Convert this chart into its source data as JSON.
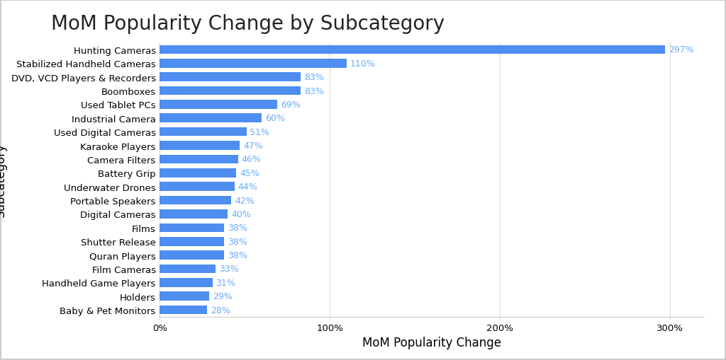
{
  "title": "MoM Popularity Change by Subcategory",
  "xlabel": "MoM Popularity Change",
  "ylabel": "Subcategory",
  "categories": [
    "Baby & Pet Monitors",
    "Holders",
    "Handheld Game Players",
    "Film Cameras",
    "Quran Players",
    "Shutter Release",
    "Films",
    "Digital Cameras",
    "Portable Speakers",
    "Underwater Drones",
    "Battery Grip",
    "Camera Filters",
    "Karaoke Players",
    "Used Digital Cameras",
    "Industrial Camera",
    "Used Tablet PCs",
    "Boomboxes",
    "DVD, VCD Players & Recorders",
    "Stabilized Handheld Cameras",
    "Hunting Cameras"
  ],
  "values": [
    28,
    29,
    31,
    33,
    38,
    38,
    38,
    40,
    42,
    44,
    45,
    46,
    47,
    51,
    60,
    69,
    83,
    83,
    110,
    297
  ],
  "bar_color": "#4d8ef0",
  "label_color": "#6aabf7",
  "background_color": "#ffffff",
  "border_color": "#cccccc",
  "xlim": [
    0,
    320
  ],
  "xticks": [
    0,
    100,
    200,
    300
  ],
  "xtick_labels": [
    "0%",
    "100%",
    "200%",
    "300%"
  ],
  "title_fontsize": 20,
  "axis_label_fontsize": 12,
  "tick_fontsize": 9.5,
  "bar_label_fontsize": 9,
  "bar_height": 0.65,
  "figsize": [
    10.24,
    5.1
  ],
  "dpi": 100
}
